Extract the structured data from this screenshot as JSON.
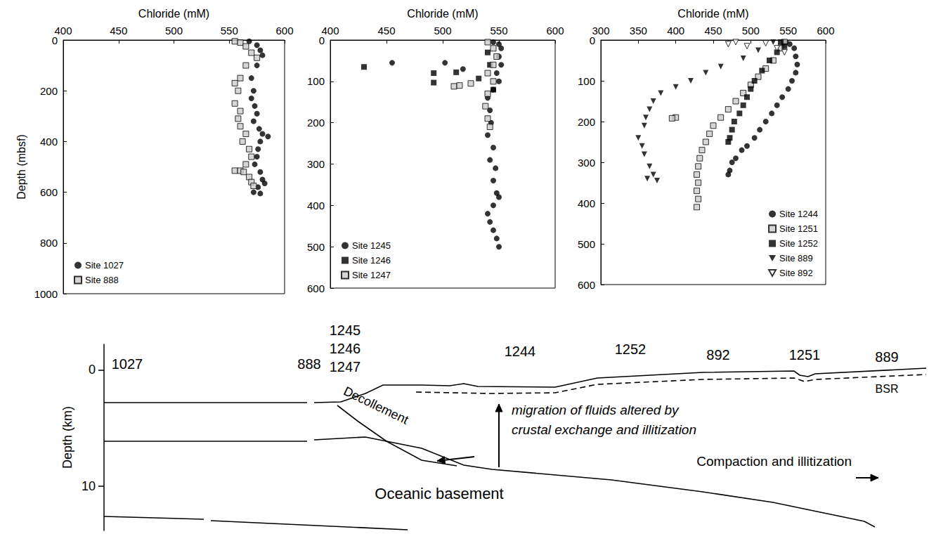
{
  "chart_data": [
    {
      "type": "scatter",
      "x_label": "Chloride (mM)",
      "y_label": "Depth (mbsf)",
      "xlim": [
        400,
        600
      ],
      "xticks": [
        400,
        450,
        500,
        550,
        600
      ],
      "ylim": [
        0,
        1000
      ],
      "yticks": [
        0,
        200,
        400,
        600,
        800,
        1000
      ],
      "legend": "lower left",
      "grid": false,
      "series": [
        {
          "name": "Site 1027",
          "marker": "circle",
          "color": "#000000",
          "x": [
            568,
            575,
            578,
            580,
            575,
            570,
            572,
            570,
            573,
            575,
            572,
            577,
            580,
            585,
            578,
            576,
            575,
            573,
            578,
            580,
            582,
            576,
            572,
            578
          ],
          "y": [
            5,
            20,
            40,
            60,
            100,
            150,
            200,
            230,
            260,
            290,
            320,
            350,
            370,
            380,
            400,
            430,
            460,
            490,
            520,
            550,
            565,
            580,
            600,
            605
          ]
        },
        {
          "name": "Site 888",
          "marker": "square_hatched",
          "color": "#cccccc",
          "x": [
            555,
            560,
            565,
            570,
            575,
            565,
            560,
            555,
            558,
            555,
            560,
            558,
            560,
            565,
            562,
            568,
            570,
            565,
            555,
            560,
            563,
            568,
            570,
            572
          ],
          "y": [
            5,
            10,
            25,
            50,
            70,
            100,
            150,
            170,
            200,
            250,
            280,
            310,
            340,
            370,
            400,
            430,
            460,
            490,
            515,
            515,
            520,
            540,
            560,
            575
          ]
        }
      ]
    },
    {
      "type": "scatter",
      "x_label": "Chloride (mM)",
      "xlim": [
        400,
        600
      ],
      "xticks": [
        400,
        450,
        500,
        550,
        600
      ],
      "ylim": [
        0,
        600
      ],
      "yticks": [
        0,
        100,
        200,
        300,
        400,
        500,
        600
      ],
      "legend": "lower left",
      "grid": false,
      "series": [
        {
          "name": "Site 1245",
          "marker": "circle",
          "color": "#000000",
          "x": [
            545,
            550,
            552,
            550,
            552,
            548,
            550,
            545,
            540,
            542,
            543,
            540,
            545,
            542,
            547,
            545,
            548,
            550,
            545,
            540,
            542,
            545,
            548,
            550,
            455,
            502,
            518
          ],
          "y": [
            5,
            10,
            20,
            40,
            60,
            80,
            100,
            120,
            140,
            170,
            200,
            230,
            260,
            290,
            310,
            340,
            370,
            380,
            400,
            420,
            440,
            460,
            480,
            500,
            55,
            55,
            70
          ]
        },
        {
          "name": "Site 1246",
          "marker": "square",
          "color": "#000000",
          "x": [
            430,
            492,
            492,
            512,
            532,
            540,
            542,
            545
          ],
          "y": [
            65,
            80,
            103,
            78,
            93,
            30,
            60,
            120
          ]
        },
        {
          "name": "Site 1247",
          "marker": "square_hatched",
          "color": "#cccccc",
          "x": [
            540,
            545,
            548,
            545,
            540,
            545,
            540,
            538,
            540,
            542,
            510,
            515,
            525
          ],
          "y": [
            5,
            20,
            40,
            60,
            80,
            100,
            130,
            160,
            190,
            210,
            112,
            110,
            105
          ]
        }
      ]
    },
    {
      "type": "scatter",
      "x_label": "Chloride (mM)",
      "xlim": [
        300,
        600
      ],
      "xticks": [
        300,
        350,
        400,
        450,
        500,
        550,
        600
      ],
      "ylim": [
        0,
        600
      ],
      "yticks": [
        0,
        100,
        200,
        300,
        400,
        500,
        600
      ],
      "legend": "lower right",
      "grid": false,
      "series": [
        {
          "name": "Site 1244",
          "marker": "circle",
          "color": "#000000",
          "x": [
            545,
            552,
            558,
            560,
            562,
            560,
            555,
            550,
            542,
            535,
            528,
            520,
            512,
            505,
            495,
            488,
            480,
            475,
            472,
            470
          ],
          "y": [
            5,
            10,
            20,
            40,
            60,
            80,
            100,
            120,
            140,
            160,
            180,
            200,
            220,
            240,
            260,
            270,
            290,
            300,
            320,
            330
          ]
        },
        {
          "name": "Site 1251",
          "marker": "square_hatched",
          "color": "#cccccc",
          "x": [
            545,
            540,
            530,
            520,
            510,
            500,
            490,
            480,
            470,
            460,
            400,
            395,
            450,
            445,
            440,
            435,
            432,
            430,
            428,
            430,
            428,
            430,
            428
          ],
          "y": [
            5,
            20,
            50,
            70,
            90,
            110,
            130,
            150,
            170,
            190,
            190,
            192,
            210,
            230,
            250,
            270,
            290,
            310,
            330,
            350,
            370,
            390,
            410
          ]
        },
        {
          "name": "Site 1252",
          "marker": "square",
          "color": "#000000",
          "x": [
            540,
            545,
            535,
            525,
            515,
            505,
            500,
            495,
            490,
            485,
            478,
            475,
            472,
            470
          ],
          "y": [
            5,
            15,
            30,
            50,
            75,
            100,
            120,
            140,
            160,
            180,
            200,
            220,
            240,
            250
          ]
        },
        {
          "name": "Site 889",
          "marker": "triangle_down",
          "color": "#000000",
          "x": [
            530,
            510,
            490,
            460,
            440,
            420,
            400,
            380,
            370,
            365,
            360,
            358,
            350,
            355,
            358,
            365,
            370,
            362,
            375
          ],
          "y": [
            5,
            25,
            45,
            65,
            80,
            100,
            115,
            130,
            150,
            170,
            190,
            210,
            240,
            260,
            280,
            310,
            330,
            340,
            345
          ]
        },
        {
          "name": "Site 892",
          "marker": "triangle_down_open",
          "color": "#ffffff",
          "x": [
            470,
            480,
            495,
            520,
            535,
            545
          ],
          "y": [
            10,
            5,
            15,
            8,
            20,
            30
          ]
        }
      ]
    }
  ],
  "diagram": {
    "y_label": "Depth (km)",
    "ylim": [
      -2.2,
      13.8
    ],
    "yticks": [
      0,
      10
    ],
    "sites": [
      "1027",
      "888",
      "1245",
      "1246",
      "1247",
      "1244",
      "1252",
      "892",
      "1251",
      "889"
    ],
    "bsr": "BSR",
    "decollement": "Decollement",
    "migration": [
      "migration of fluids altered by",
      "crustal exchange and illitization"
    ],
    "compaction": "Compaction and illitization",
    "basement": "Oceanic basement"
  }
}
